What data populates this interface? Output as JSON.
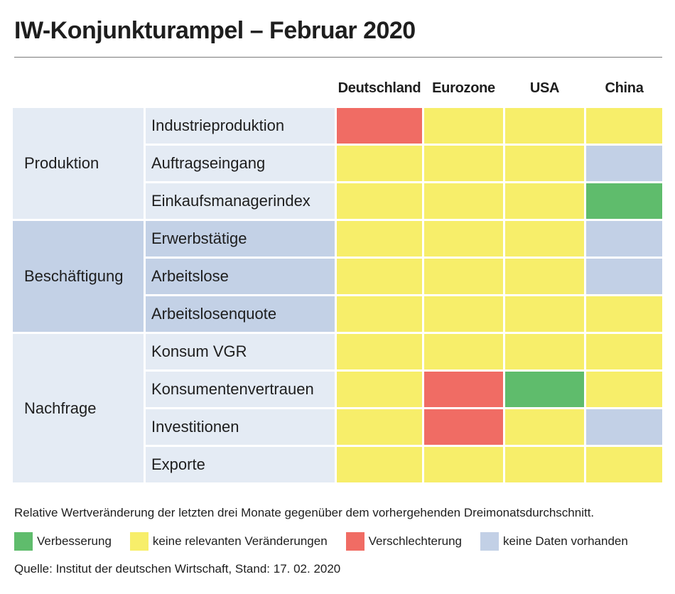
{
  "title": "IW-Konjunkturampel – Februar 2020",
  "colors": {
    "green": "#5fbc6c",
    "yellow": "#f7ee6a",
    "red": "#f06c64",
    "gray": "#c2d0e6",
    "group_light": "#e4ebf4",
    "group_dark": "#c3d1e6"
  },
  "chart_data": {
    "type": "table",
    "columns": [
      "Deutschland",
      "Eurozone",
      "USA",
      "China"
    ],
    "groups": [
      {
        "name": "Produktion",
        "shade": "light",
        "rows": [
          {
            "label": "Industrieproduktion",
            "values": [
              "red",
              "yellow",
              "yellow",
              "yellow"
            ]
          },
          {
            "label": "Auftragseingang",
            "values": [
              "yellow",
              "yellow",
              "yellow",
              "gray"
            ]
          },
          {
            "label": "Einkaufsmanagerindex",
            "values": [
              "yellow",
              "yellow",
              "yellow",
              "green"
            ]
          }
        ]
      },
      {
        "name": "Beschäftigung",
        "shade": "dark",
        "rows": [
          {
            "label": "Erwerbstätige",
            "values": [
              "yellow",
              "yellow",
              "yellow",
              "gray"
            ]
          },
          {
            "label": "Arbeitslose",
            "values": [
              "yellow",
              "yellow",
              "yellow",
              "gray"
            ]
          },
          {
            "label": "Arbeitslosenquote",
            "values": [
              "yellow",
              "yellow",
              "yellow",
              "yellow"
            ]
          }
        ]
      },
      {
        "name": "Nachfrage",
        "shade": "light",
        "rows": [
          {
            "label": "Konsum VGR",
            "values": [
              "yellow",
              "yellow",
              "yellow",
              "yellow"
            ]
          },
          {
            "label": "Konsumentenvertrauen",
            "values": [
              "yellow",
              "red",
              "green",
              "yellow"
            ]
          },
          {
            "label": "Investitionen",
            "values": [
              "yellow",
              "red",
              "yellow",
              "gray"
            ]
          },
          {
            "label": "Exporte",
            "values": [
              "yellow",
              "yellow",
              "yellow",
              "yellow"
            ]
          }
        ]
      }
    ]
  },
  "footer": {
    "note": "Relative Wertveränderung der letzten drei Monate gegenüber dem vorhergehenden Dreimonatsdurchschnitt.",
    "legend": [
      {
        "key": "green",
        "label": "Verbesserung"
      },
      {
        "key": "yellow",
        "label": "keine relevanten Veränderungen"
      },
      {
        "key": "red",
        "label": "Verschlechterung"
      },
      {
        "key": "gray",
        "label": "keine Daten vorhanden"
      }
    ],
    "source": "Quelle: Institut der deutschen Wirtschaft, Stand: 17. 02. 2020"
  }
}
